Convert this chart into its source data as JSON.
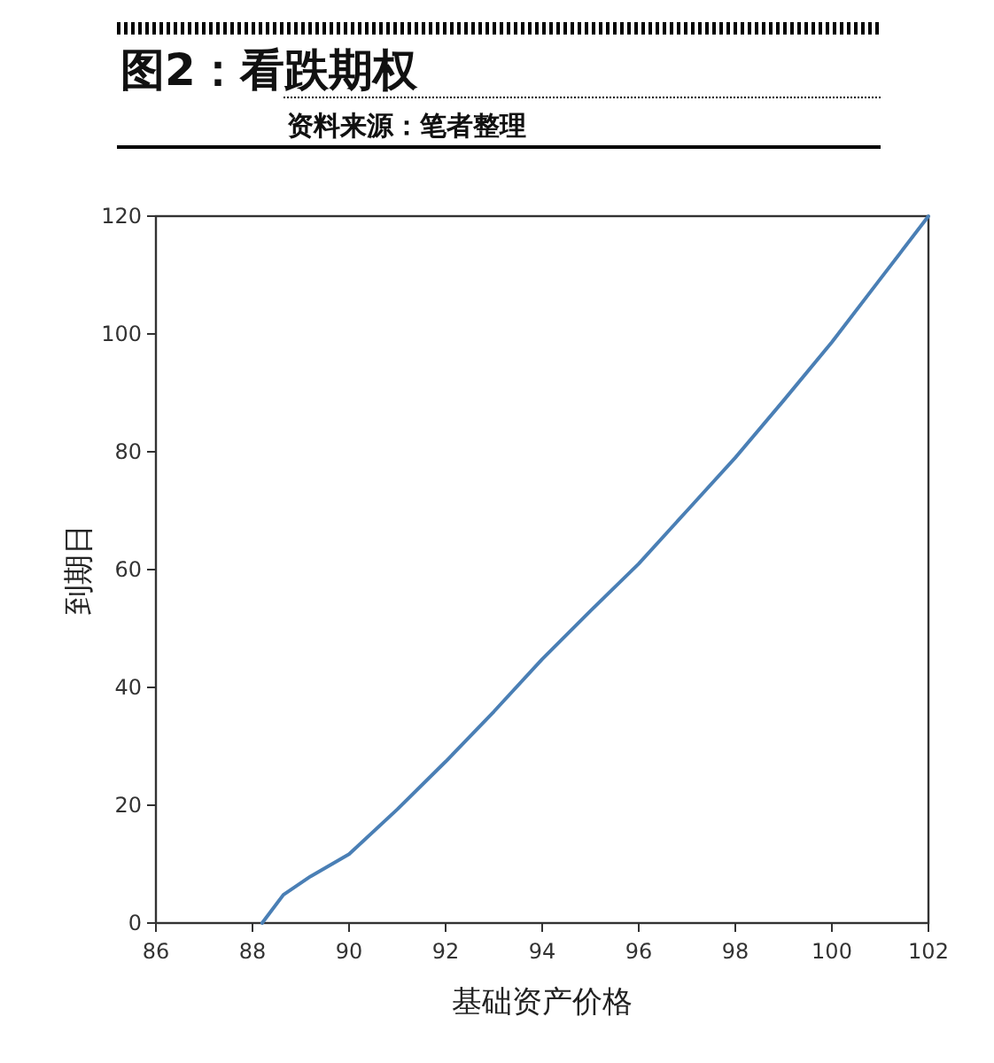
{
  "chart_data": {
    "type": "line",
    "title": "图2：看跌期权",
    "subtitle": "资料来源：笔者整理",
    "xlabel": "基础资产价格",
    "ylabel": "到期日",
    "series": [
      {
        "color": "#4a7fb5",
        "x": [
          88.2,
          88.64,
          89.2,
          90,
          91,
          92,
          93,
          94,
          95,
          96,
          97,
          98,
          99,
          100,
          101,
          102
        ],
        "values": [
          0,
          4.8,
          7.9,
          11.7,
          19.3,
          27.4,
          35.9,
          44.8,
          53,
          61,
          70,
          79,
          88.7,
          98.6,
          109.3,
          120
        ]
      }
    ],
    "xlim": [
      86,
      102
    ],
    "xticks": [
      86,
      88,
      90,
      92,
      94,
      96,
      98,
      100,
      102
    ],
    "ylim": [
      0,
      120
    ],
    "yticks": [
      0,
      20,
      40,
      60,
      80,
      100,
      120
    ],
    "grid": false,
    "marker": "none",
    "line_style": "solid"
  }
}
